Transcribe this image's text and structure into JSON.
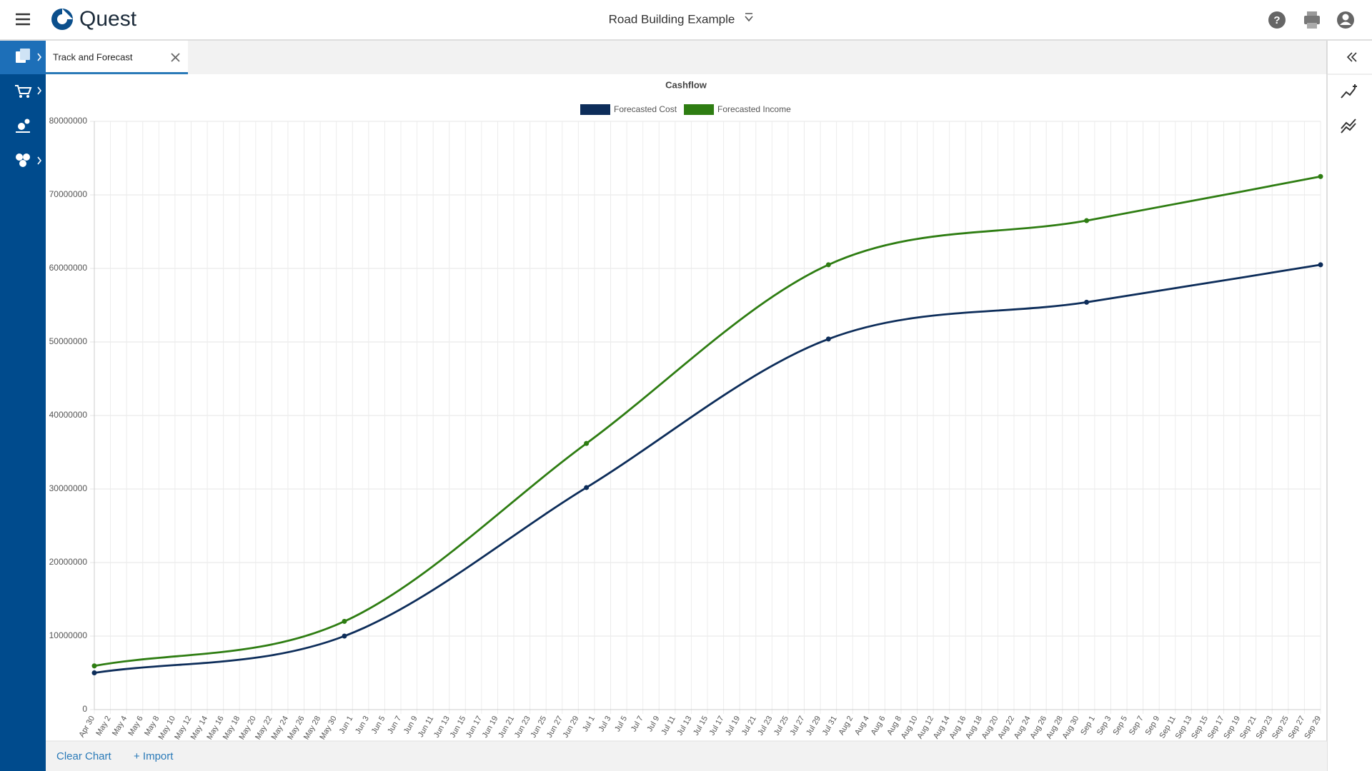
{
  "header": {
    "app_name": "Quest",
    "project": "Road Building Example"
  },
  "tab": {
    "label": "Track and Forecast"
  },
  "footer": {
    "clear": "Clear Chart",
    "import": "+ Import"
  },
  "chart_data": {
    "type": "line",
    "title": "Cashflow",
    "x": [
      "Apr 30",
      "May 31",
      "Jun 30",
      "Jul 30",
      "Aug 31",
      "Sep 29"
    ],
    "series": [
      {
        "name": "Forecasted Cost",
        "color": "#0d2d5a",
        "values": [
          5000000,
          10000000,
          30200000,
          50400000,
          55400000,
          60500000
        ]
      },
      {
        "name": "Forecasted Income",
        "color": "#2e7d12",
        "values": [
          5950000,
          12000000,
          36200000,
          60500000,
          66500000,
          72500000
        ]
      }
    ],
    "xlim": [
      "Apr 30",
      "Sep 29"
    ],
    "xticks": [
      "Apr 30",
      "May 2",
      "May 4",
      "May 6",
      "May 8",
      "May 10",
      "May 12",
      "May 14",
      "May 16",
      "May 18",
      "May 20",
      "May 22",
      "May 24",
      "May 26",
      "May 28",
      "May 30",
      "Jun 1",
      "Jun 3",
      "Jun 5",
      "Jun 7",
      "Jun 9",
      "Jun 11",
      "Jun 13",
      "Jun 15",
      "Jun 17",
      "Jun 19",
      "Jun 21",
      "Jun 23",
      "Jun 25",
      "Jun 27",
      "Jun 29",
      "Jul 1",
      "Jul 3",
      "Jul 5",
      "Jul 7",
      "Jul 9",
      "Jul 11",
      "Jul 13",
      "Jul 15",
      "Jul 17",
      "Jul 19",
      "Jul 21",
      "Jul 23",
      "Jul 25",
      "Jul 27",
      "Jul 29",
      "Jul 31",
      "Aug 2",
      "Aug 4",
      "Aug 6",
      "Aug 8",
      "Aug 10",
      "Aug 12",
      "Aug 14",
      "Aug 16",
      "Aug 18",
      "Aug 20",
      "Aug 22",
      "Aug 24",
      "Aug 26",
      "Aug 28",
      "Aug 30",
      "Sep 1",
      "Sep 3",
      "Sep 5",
      "Sep 7",
      "Sep 9",
      "Sep 11",
      "Sep 13",
      "Sep 15",
      "Sep 17",
      "Sep 19",
      "Sep 21",
      "Sep 23",
      "Sep 25",
      "Sep 27",
      "Sep 29"
    ],
    "ylim": [
      0,
      80000000
    ],
    "yticks": [
      0,
      10000000,
      20000000,
      30000000,
      40000000,
      50000000,
      60000000,
      70000000,
      80000000
    ],
    "grid": true,
    "legend": "top"
  }
}
